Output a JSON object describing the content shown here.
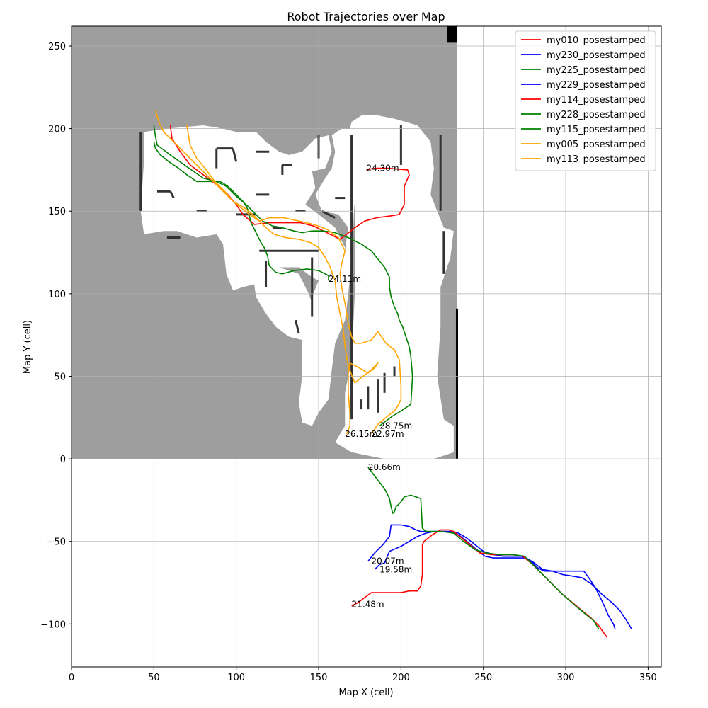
{
  "chart_data": {
    "type": "line",
    "title": "Robot Trajectories over Map",
    "xlabel": "Map X (cell)",
    "ylabel": "Map Y (cell)",
    "xlim": [
      0,
      358
    ],
    "ylim": [
      -126,
      262
    ],
    "xticks": [
      0,
      50,
      100,
      150,
      200,
      250,
      300,
      350
    ],
    "yticks": [
      -100,
      -50,
      0,
      50,
      100,
      150,
      200,
      250
    ],
    "grid": true,
    "legend_position": "top-right",
    "background_map": {
      "description_free": true,
      "x_extent": [
        0,
        234
      ],
      "y_extent": [
        0,
        262
      ],
      "unknown_color": "#9e9e9e",
      "free_color": "#ffffff",
      "wall_color": "#333333"
    },
    "series": [
      {
        "name": "my010_posestamped",
        "color": "#ff0000",
        "end_label": "24.30m",
        "x": [
          179,
          184,
          192,
          204,
          205,
          202,
          202,
          199,
          193,
          185,
          178,
          172,
          167,
          163,
          155,
          147,
          139,
          130,
          120,
          111,
          104,
          100,
          95,
          88,
          80,
          72,
          66,
          61,
          60
        ],
        "y": [
          175,
          176,
          176,
          175,
          172,
          165,
          154,
          148,
          147,
          146,
          144,
          140,
          136,
          133,
          137,
          141,
          143,
          143,
          143,
          142,
          148,
          154,
          160,
          166,
          172,
          178,
          186,
          194,
          202
        ]
      },
      {
        "name": "my230_posestamped",
        "color": "#0000ff",
        "end_label": "20.07m",
        "x": [
          180,
          184,
          189,
          193,
          194,
          200,
          205,
          209,
          212,
          215,
          218,
          223,
          228,
          232,
          235,
          240,
          246,
          251,
          256,
          262,
          268,
          273,
          276,
          280,
          283,
          287,
          292,
          300,
          305,
          311,
          314,
          318,
          322,
          326,
          329,
          330
        ],
        "y": [
          -62,
          -57,
          -52,
          -47,
          -40,
          -40,
          -41,
          -43,
          -44,
          -44,
          -44,
          -44,
          -44,
          -45,
          -46,
          -50,
          -55,
          -59,
          -60,
          -60,
          -60,
          -60,
          -60,
          -63,
          -66,
          -68,
          -68,
          -68,
          -68,
          -68,
          -72,
          -78,
          -86,
          -95,
          -100,
          -103
        ]
      },
      {
        "name": "my225_posestamped",
        "color": "#008000",
        "end_label": "24.11m",
        "x": [
          156,
          156,
          150,
          143,
          135,
          128,
          124,
          120,
          119,
          117,
          115,
          113,
          111,
          109,
          108,
          107,
          106,
          104,
          101,
          98,
          95,
          92,
          90,
          87,
          84,
          80,
          76,
          70,
          65,
          59,
          54,
          51,
          50
        ],
        "y": [
          108,
          111,
          114,
          115,
          114,
          112,
          113,
          117,
          123,
          128,
          131,
          135,
          139,
          143,
          147,
          151,
          153,
          156,
          159,
          162,
          165,
          167,
          168,
          168,
          168,
          168,
          168,
          172,
          176,
          180,
          184,
          188,
          192
        ]
      },
      {
        "name": "my229_posestamped",
        "color": "#0000ff",
        "end_label": "19.58m",
        "x": [
          184,
          187,
          190,
          193,
          200,
          205,
          210,
          215,
          220,
          226,
          231,
          235,
          240,
          245,
          250,
          256,
          262,
          268,
          273,
          276,
          281,
          286,
          292,
          298,
          304,
          310,
          316,
          322,
          328,
          333,
          337,
          340
        ],
        "y": [
          -67,
          -64,
          -63,
          -56,
          -53,
          -50,
          -47,
          -45,
          -44,
          -44,
          -44,
          -45,
          -48,
          -52,
          -56,
          -58,
          -59,
          -59,
          -59,
          -60,
          -63,
          -67,
          -68,
          -70,
          -71,
          -72,
          -76,
          -82,
          -87,
          -92,
          -98,
          -103
        ]
      },
      {
        "name": "my114_posestamped",
        "color": "#ff0000",
        "end_label": "21.48m",
        "x": [
          170,
          174,
          178,
          182,
          190,
          200,
          205,
          210,
          212,
          213,
          213,
          214,
          219,
          224,
          229,
          232,
          237,
          243,
          248,
          255,
          262,
          268,
          274,
          280,
          286,
          292,
          298,
          304,
          310,
          315,
          320,
          325
        ],
        "y": [
          -89,
          -87,
          -84,
          -81,
          -81,
          -81,
          -80,
          -80,
          -77,
          -70,
          -52,
          -50,
          -46,
          -43,
          -43,
          -44,
          -48,
          -53,
          -57,
          -58,
          -58,
          -58,
          -59,
          -64,
          -70,
          -76,
          -82,
          -87,
          -92,
          -96,
          -101,
          -108
        ]
      },
      {
        "name": "my228_posestamped",
        "color": "#008000",
        "end_label": "20.66m",
        "x": [
          180,
          183,
          186,
          190,
          193,
          194,
          195,
          196,
          197,
          200,
          202,
          206,
          212,
          213,
          215,
          220,
          225,
          232,
          238,
          245,
          252,
          260,
          268,
          275,
          282,
          290,
          298,
          306,
          312,
          317,
          320
        ],
        "y": [
          -5,
          -9,
          -13,
          -18,
          -24,
          -29,
          -33,
          -32,
          -29,
          -26,
          -23,
          -22,
          -24,
          -42,
          -44,
          -44,
          -44,
          -45,
          -50,
          -55,
          -57,
          -58,
          -58,
          -59,
          -66,
          -74,
          -82,
          -89,
          -94,
          -98,
          -103
        ]
      },
      {
        "name": "my115_posestamped",
        "color": "#008000",
        "end_label": "28.75m",
        "x": [
          187,
          191,
          195,
          200,
          206,
          207,
          206,
          205,
          203,
          201,
          199,
          198,
          196,
          194,
          193,
          193,
          190,
          186,
          182,
          176,
          168,
          160,
          153,
          146,
          140,
          135,
          128,
          122,
          116,
          112,
          107,
          100,
          94,
          88,
          80,
          70,
          60,
          52,
          51,
          50
        ],
        "y": [
          20,
          23,
          26,
          29,
          33,
          50,
          62,
          68,
          74,
          80,
          84,
          88,
          92,
          98,
          104,
          110,
          116,
          121,
          126,
          130,
          134,
          137,
          138,
          138,
          137,
          138,
          140,
          141,
          144,
          148,
          153,
          159,
          165,
          168,
          170,
          177,
          184,
          190,
          195,
          202
        ]
      },
      {
        "name": "my005_posestamped",
        "color": "#ffa500",
        "end_label": "26.15m",
        "x": [
          167,
          169,
          169,
          168,
          168,
          169,
          173,
          180,
          184,
          186,
          182,
          177,
          172,
          168,
          166,
          165,
          163,
          161,
          160,
          157,
          154,
          150,
          145,
          138,
          130,
          123,
          118,
          114,
          110,
          105,
          98,
          92,
          86,
          80,
          74,
          68,
          62,
          56,
          53,
          51
        ],
        "y": [
          15,
          20,
          28,
          40,
          52,
          58,
          56,
          52,
          55,
          58,
          54,
          50,
          46,
          56,
          68,
          78,
          88,
          98,
          108,
          116,
          122,
          128,
          131,
          133,
          134,
          136,
          140,
          144,
          148,
          152,
          156,
          162,
          168,
          174,
          180,
          186,
          192,
          198,
          204,
          211
        ]
      },
      {
        "name": "my113_posestamped",
        "color": "#ffa500",
        "end_label": "22.97m",
        "x": [
          182,
          186,
          192,
          196,
          198,
          200,
          200,
          199,
          196,
          191,
          186,
          182,
          176,
          172,
          170,
          168,
          166,
          164,
          163,
          164,
          166,
          162,
          155,
          147,
          138,
          129,
          120,
          114,
          108,
          103,
          98,
          93,
          87,
          81,
          76,
          72,
          70
        ],
        "y": [
          15,
          21,
          26,
          29,
          32,
          36,
          44,
          60,
          66,
          70,
          77,
          72,
          70,
          70,
          74,
          82,
          94,
          104,
          112,
          118,
          126,
          134,
          139,
          142,
          144,
          146,
          146,
          144,
          148,
          152,
          156,
          162,
          168,
          176,
          182,
          190,
          202
        ]
      }
    ],
    "annotations": [
      {
        "text": "24.30m",
        "x": 179,
        "y": 176
      },
      {
        "text": "24.11m",
        "x": 156,
        "y": 109
      },
      {
        "text": "28.75m",
        "x": 187,
        "y": 20
      },
      {
        "text": "26.15m",
        "x": 166,
        "y": 15
      },
      {
        "text": "22.97m",
        "x": 182,
        "y": 15
      },
      {
        "text": "20.66m",
        "x": 180,
        "y": -5
      },
      {
        "text": "20.07m",
        "x": 182,
        "y": -62
      },
      {
        "text": "19.58m",
        "x": 187,
        "y": -67
      },
      {
        "text": "21.48m",
        "x": 170,
        "y": -88
      }
    ]
  }
}
